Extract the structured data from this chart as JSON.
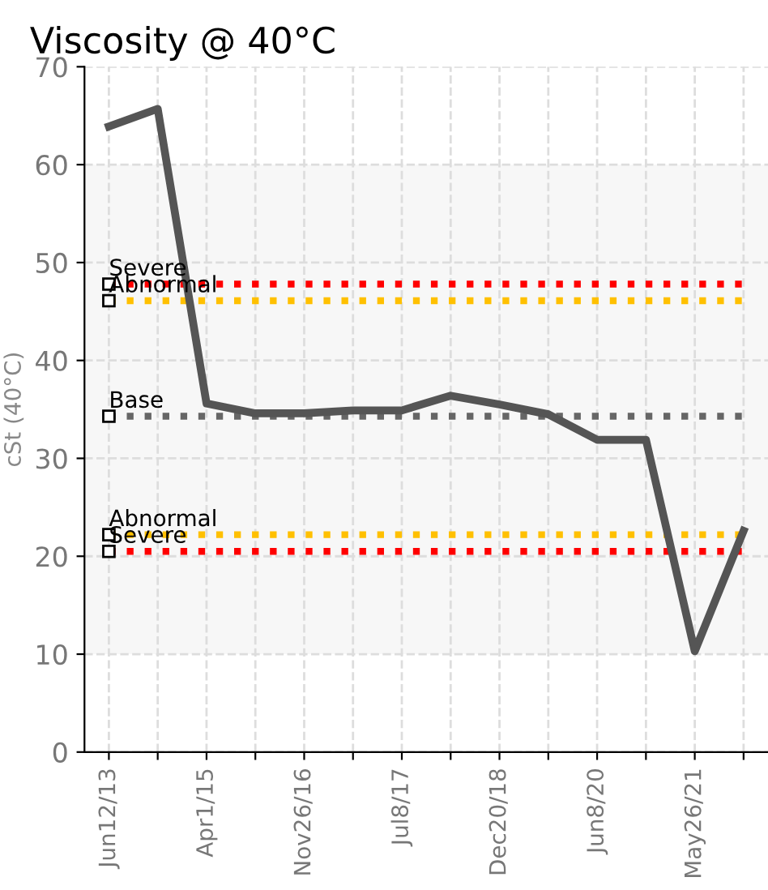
{
  "chart_data": {
    "type": "line",
    "title": "Viscosity @ 40°C",
    "ylabel": "cSt (40°C)",
    "categories": [
      "Jun12/13",
      null,
      "Apr1/15",
      null,
      "Nov26/16",
      null,
      "Jul8/17",
      null,
      "Dec20/18",
      null,
      "Jun8/20",
      null,
      "May26/21",
      null
    ],
    "series": [
      {
        "color": "#555555",
        "values": [
          63.9,
          65.7,
          35.6,
          34.6,
          34.6,
          34.9,
          34.9,
          36.4,
          35.5,
          34.5,
          31.9,
          31.9,
          10.3,
          22.6
        ]
      }
    ],
    "ylim": [
      0,
      70
    ],
    "yticks": [
      0,
      10,
      20,
      30,
      40,
      50,
      60,
      70
    ],
    "ref_lines": [
      {
        "axis": "y",
        "value": 47.8,
        "label": "Severe",
        "color": "#ff0000",
        "line_style": "dotted"
      },
      {
        "axis": "y",
        "value": 46.1,
        "label": "Abnormal",
        "color": "#ffc000",
        "line_style": "dotted"
      },
      {
        "axis": "y",
        "value": 34.3,
        "label": "Base",
        "color": "#666666",
        "line_style": "dotted"
      },
      {
        "axis": "y",
        "value": 22.2,
        "label": "Abnormal",
        "color": "#ffc000",
        "line_style": "dotted"
      },
      {
        "axis": "y",
        "value": 20.5,
        "label": "Severe",
        "color": "#ff0000",
        "line_style": "dotted"
      }
    ],
    "bands": [
      {
        "axis": "y",
        "from": 10,
        "to": 60,
        "color": "#f7f7f7"
      }
    ],
    "grid": true,
    "marker": "none",
    "line_style": "solid",
    "legend": false
  }
}
